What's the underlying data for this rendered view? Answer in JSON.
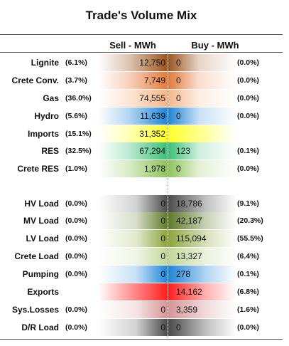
{
  "title": "Trade's Volume Mix",
  "headers": {
    "sell": "Sell - MWh",
    "buy": "Buy - MWh"
  },
  "colors": {
    "lignite": "#9b5520",
    "crete_conv": "#e67a3c",
    "gas": "#f7b68a",
    "hydro": "#1f86d8",
    "imports": "#ffff2a",
    "res": "#3cc07a",
    "crete_res": "#8ec45a",
    "hv_load": "#4c4c4c",
    "mv_load": "#5f7a2a",
    "lv_load": "#8ba63a",
    "crete_load": "#c2d89a",
    "pumping": "#1f86d8",
    "exports": "#ff1e1e",
    "sys_losses": "#d69595",
    "dr_load": "#4a4a4a"
  },
  "rows": [
    {
      "label": "Lignite",
      "sell_pct": "(6.1%)",
      "sell": "12,750",
      "buy": "0",
      "buy_pct": "(0.0%)"
    },
    {
      "label": "Crete Conv.",
      "sell_pct": "(3.7%)",
      "sell": "7,749",
      "buy": "0",
      "buy_pct": "(0.0%)"
    },
    {
      "label": "Gas",
      "sell_pct": "(36.0%)",
      "sell": "74,555",
      "buy": "0",
      "buy_pct": "(0.0%)"
    },
    {
      "label": "Hydro",
      "sell_pct": "(5.6%)",
      "sell": "11,639",
      "buy": "0",
      "buy_pct": "(0.0%)"
    },
    {
      "label": "Imports",
      "sell_pct": "(15.1%)",
      "sell": "31,352",
      "buy": "",
      "buy_pct": ""
    },
    {
      "label": "RES",
      "sell_pct": "(32.5%)",
      "sell": "67,294",
      "buy": "123",
      "buy_pct": "(0.1%)"
    },
    {
      "label": "Crete RES",
      "sell_pct": "(1.0%)",
      "sell": "1,978",
      "buy": "0",
      "buy_pct": "(0.0%)"
    },
    {
      "label": "HV Load",
      "sell_pct": "(0.0%)",
      "sell": "0",
      "buy": "18,786",
      "buy_pct": "(9.1%)"
    },
    {
      "label": "MV Load",
      "sell_pct": "(0.0%)",
      "sell": "0",
      "buy": "42,187",
      "buy_pct": "(20.3%)"
    },
    {
      "label": "LV Load",
      "sell_pct": "(0.0%)",
      "sell": "0",
      "buy": "115,094",
      "buy_pct": "(55.5%)"
    },
    {
      "label": "Crete Load",
      "sell_pct": "(0.0%)",
      "sell": "0",
      "buy": "13,327",
      "buy_pct": "(6.4%)"
    },
    {
      "label": "Pumping",
      "sell_pct": "(0.0%)",
      "sell": "0",
      "buy": "278",
      "buy_pct": "(0.1%)"
    },
    {
      "label": "Exports",
      "sell_pct": "",
      "sell": "",
      "buy": "14,162",
      "buy_pct": "(6.8%)"
    },
    {
      "label": "Sys.Losses",
      "sell_pct": "(0.0%)",
      "sell": "0",
      "buy": "3,359",
      "buy_pct": "(1.6%)"
    },
    {
      "label": "D/R Load",
      "sell_pct": "(0.0%)",
      "sell": "0",
      "buy": "0",
      "buy_pct": "(0.0%)"
    }
  ]
}
